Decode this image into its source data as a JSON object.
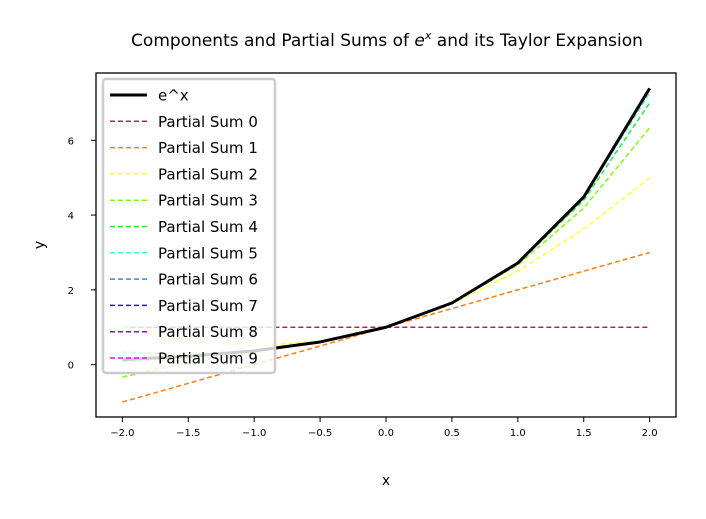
{
  "chart_data": {
    "type": "line",
    "title": {
      "prefix": "Components and Partial Sums of ",
      "base": "e",
      "exponent": "x",
      "suffix": " and its Taylor Expansion"
    },
    "xlabel": "x",
    "ylabel": "y",
    "xlim": [
      -2.2,
      2.2
    ],
    "ylim": [
      -1.4,
      7.8
    ],
    "xticks": [
      -2.0,
      -1.5,
      -1.0,
      -0.5,
      0.0,
      0.5,
      1.0,
      1.5,
      2.0
    ],
    "xtick_labels": [
      "−2.0",
      "−1.5",
      "−1.0",
      "−0.5",
      "0.0",
      "0.5",
      "1.0",
      "1.5",
      "2.0"
    ],
    "yticks": [
      0,
      2,
      4,
      6
    ],
    "ytick_labels": [
      "0",
      "2",
      "4",
      "6"
    ],
    "grid": false,
    "legend_position": "top-left",
    "x": [
      -2.0,
      -1.5,
      -1.0,
      -0.5,
      0.0,
      0.5,
      1.0,
      1.5,
      2.0
    ],
    "series": [
      {
        "name": "e^x",
        "color": "#000000",
        "style": "solid",
        "values": [
          0.135,
          0.223,
          0.368,
          0.607,
          1.0,
          1.649,
          2.718,
          4.482,
          7.389
        ]
      },
      {
        "name": "Partial Sum 0",
        "color": "#dc143c",
        "style": "dashed",
        "values": [
          1,
          1,
          1,
          1,
          1,
          1,
          1,
          1,
          1
        ]
      },
      {
        "name": "Partial Sum 1",
        "color": "#ff7f0e",
        "style": "dashed",
        "values": [
          -1.0,
          -0.5,
          0.0,
          0.5,
          1.0,
          1.5,
          2.0,
          2.5,
          3.0
        ]
      },
      {
        "name": "Partial Sum 2",
        "color": "#ffff33",
        "style": "dashed",
        "values": [
          1.0,
          0.625,
          0.5,
          0.625,
          1.0,
          1.625,
          2.5,
          3.625,
          5.0
        ]
      },
      {
        "name": "Partial Sum 3",
        "color": "#80ff00",
        "style": "dashed",
        "values": [
          -0.333,
          0.063,
          0.333,
          0.604,
          1.0,
          1.646,
          2.667,
          4.188,
          6.333
        ]
      },
      {
        "name": "Partial Sum 4",
        "color": "#22ee44",
        "style": "dashed",
        "values": [
          0.333,
          0.273,
          0.375,
          0.607,
          1.0,
          1.648,
          2.708,
          4.398,
          7.0
        ]
      },
      {
        "name": "Partial Sum 5",
        "color": "#33ffcc",
        "style": "dashed",
        "values": [
          0.067,
          0.21,
          0.367,
          0.606,
          1.0,
          1.649,
          2.717,
          4.462,
          7.267
        ]
      },
      {
        "name": "Partial Sum 6",
        "color": "#1e90ff",
        "style": "dashed",
        "values": [
          0.156,
          0.225,
          0.368,
          0.607,
          1.0,
          1.649,
          2.718,
          4.478,
          7.356
        ]
      },
      {
        "name": "Partial Sum 7",
        "color": "#1a1acc",
        "style": "dashed",
        "values": [
          0.131,
          0.223,
          0.368,
          0.607,
          1.0,
          1.649,
          2.718,
          4.481,
          7.381
        ]
      },
      {
        "name": "Partial Sum 8",
        "color": "#9400d3",
        "style": "dashed",
        "values": [
          0.136,
          0.223,
          0.368,
          0.607,
          1.0,
          1.649,
          2.718,
          4.482,
          7.387
        ]
      },
      {
        "name": "Partial Sum 9",
        "color": "#ff00ff",
        "style": "dashed",
        "values": [
          0.135,
          0.223,
          0.368,
          0.607,
          1.0,
          1.649,
          2.718,
          4.482,
          7.389
        ]
      }
    ]
  }
}
